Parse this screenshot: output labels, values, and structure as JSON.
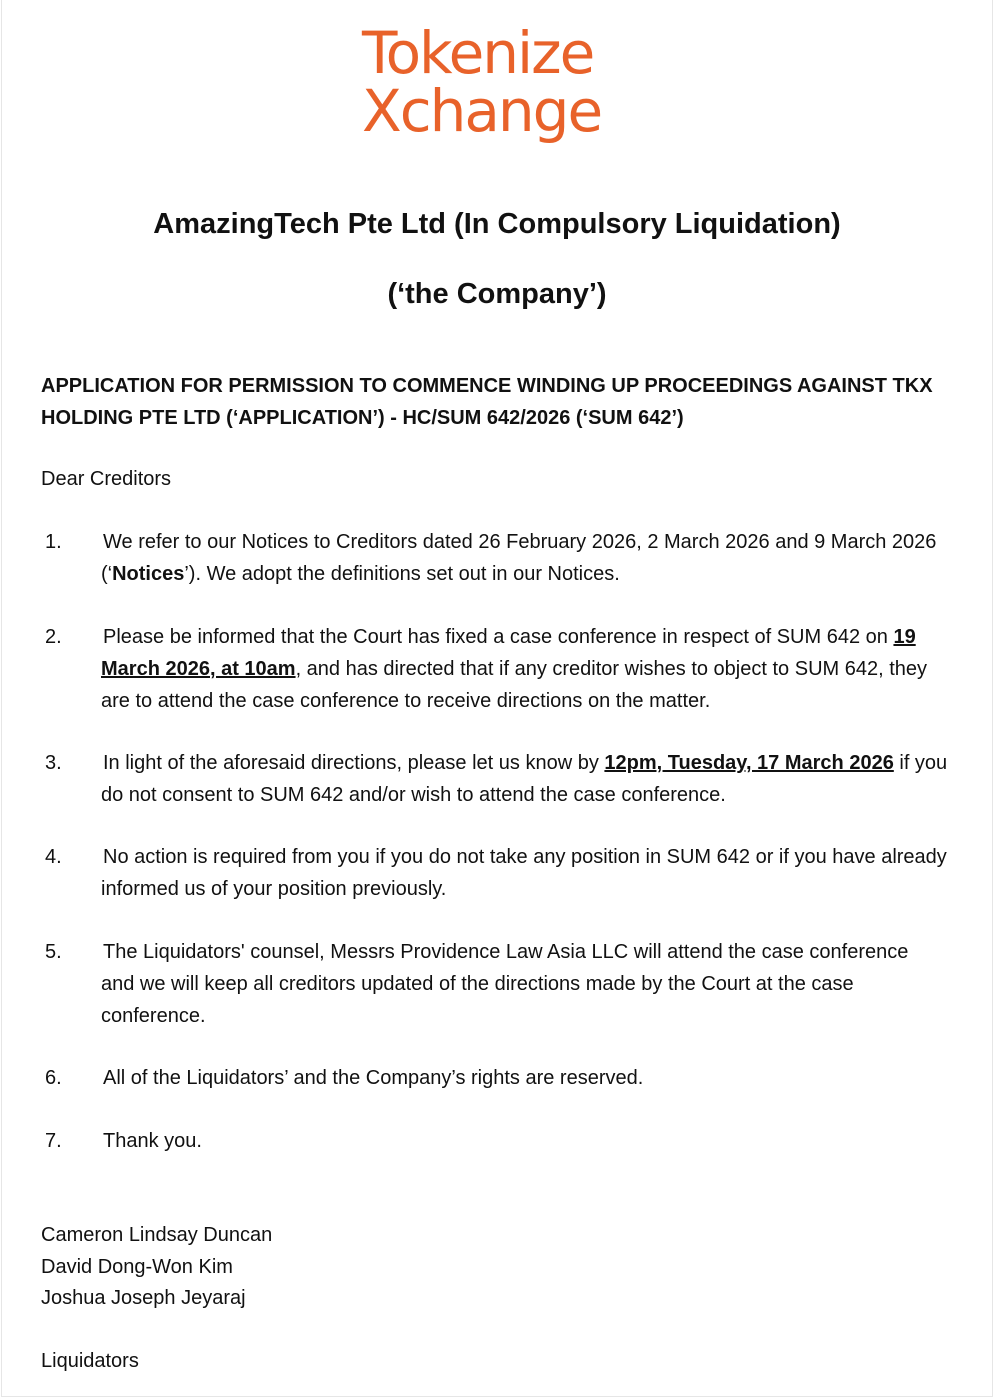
{
  "logo": {
    "line1": "Tokenize",
    "line2": "Xchange",
    "color": "#e8622a"
  },
  "title": "AmazingTech Pte Ltd (In Compulsory Liquidation)",
  "subtitle": "(‘the Company’)",
  "heading": "APPLICATION FOR PERMISSION TO COMMENCE WINDING UP PROCEEDINGS AGAINST TKX HOLDING PTE LTD (‘APPLICATION’) - HC/SUM 642/2026 (‘SUM 642’)",
  "salutation": "Dear Creditors",
  "items": [
    {
      "num": "1.",
      "a": "We refer to our Notices to Creditors dated 26 February 2026, 2 March 2026 and 9 March 2026 (‘",
      "b": "Notices",
      "c": "’). We adopt the definitions set out in our Notices."
    },
    {
      "num": "2.",
      "a": "Please be informed that the Court has fixed a case conference in respect of SUM 642 on ",
      "b": "19 March 2026, at 10am",
      "c": ", and has directed that if any creditor wishes to object to SUM 642, they are to attend the case conference to receive directions on the matter."
    },
    {
      "num": "3.",
      "a": "In light of the aforesaid directions, please let us know by ",
      "b": "12pm, Tuesday, 17 March 2026",
      "c": " if you do not consent to SUM 642 and/or wish to attend the case conference."
    },
    {
      "num": "4.",
      "a": "No action is required from you if you do not take any position in SUM 642 or if you have already informed us of your position previously."
    },
    {
      "num": "5.",
      "a": "The Liquidators' counsel, Messrs Providence Law Asia LLC will attend the case conference and we will keep all creditors updated of the directions made by the Court at the case conference."
    },
    {
      "num": "6.",
      "a": "All of the Liquidators’ and the Company’s rights are reserved."
    },
    {
      "num": "7.",
      "a": "Thank you."
    }
  ],
  "signatories": [
    "Cameron Lindsay Duncan",
    "David Dong-Won Kim",
    "Joshua Joseph Jeyaraj"
  ],
  "role": "Liquidators"
}
